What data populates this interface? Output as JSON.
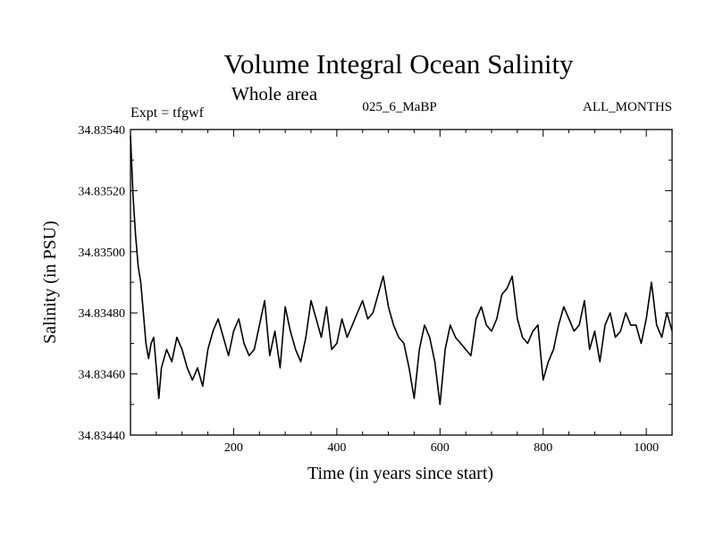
{
  "chart_data": {
    "type": "line",
    "title": "Volume Integral Ocean Salinity",
    "subtitle": "Whole area",
    "experiment_label": "Expt = tfgwf",
    "run_label": "025_6_MaBP",
    "period_label": "ALL_MONTHS",
    "xlabel": "Time (in years since start)",
    "ylabel": "Salinity (in PSU)",
    "xlim": [
      0,
      1050
    ],
    "ylim": [
      34.8344,
      34.8354
    ],
    "x_ticks": [
      200,
      400,
      600,
      800,
      1000
    ],
    "x_tick_labels": [
      "200",
      "400",
      "600",
      "800",
      "1000"
    ],
    "y_ticks": [
      34.8344,
      34.8346,
      34.8348,
      34.835,
      34.8352,
      34.8354
    ],
    "y_tick_labels": [
      "34.83440",
      "34.83460",
      "34.83480",
      "34.83500",
      "34.83520",
      "34.83540"
    ],
    "grid": false,
    "series": [
      {
        "name": "salinity",
        "x": [
          0,
          5,
          10,
          15,
          20,
          25,
          30,
          35,
          40,
          45,
          50,
          55,
          60,
          70,
          80,
          90,
          100,
          110,
          120,
          130,
          140,
          150,
          160,
          170,
          180,
          190,
          200,
          210,
          220,
          230,
          240,
          250,
          260,
          270,
          280,
          290,
          300,
          310,
          320,
          330,
          340,
          350,
          360,
          370,
          380,
          390,
          400,
          410,
          420,
          430,
          440,
          450,
          460,
          470,
          480,
          490,
          500,
          510,
          520,
          530,
          540,
          550,
          560,
          570,
          580,
          590,
          600,
          610,
          620,
          630,
          640,
          650,
          660,
          670,
          680,
          690,
          700,
          710,
          720,
          730,
          740,
          750,
          760,
          770,
          780,
          790,
          800,
          810,
          820,
          830,
          840,
          850,
          860,
          870,
          880,
          890,
          900,
          910,
          920,
          930,
          940,
          950,
          960,
          970,
          980,
          990,
          1000,
          1010,
          1020,
          1030,
          1040,
          1050
        ],
        "values": [
          34.83538,
          34.83518,
          34.83505,
          34.83495,
          34.8349,
          34.8348,
          34.8347,
          34.83465,
          34.8347,
          34.83472,
          34.83462,
          34.83452,
          34.83462,
          34.83468,
          34.83464,
          34.83472,
          34.83468,
          34.83462,
          34.83458,
          34.83462,
          34.83456,
          34.83468,
          34.83474,
          34.83478,
          34.83472,
          34.83466,
          34.83474,
          34.83478,
          34.8347,
          34.83466,
          34.83468,
          34.83476,
          34.83484,
          34.83466,
          34.83474,
          34.83462,
          34.83482,
          34.83474,
          34.83468,
          34.83464,
          34.83472,
          34.83484,
          34.83478,
          34.83472,
          34.83482,
          34.83468,
          34.8347,
          34.83478,
          34.83472,
          34.83476,
          34.8348,
          34.83484,
          34.83478,
          34.8348,
          34.83486,
          34.83492,
          34.83482,
          34.83476,
          34.83472,
          34.8347,
          34.83462,
          34.83452,
          34.83468,
          34.83476,
          34.83472,
          34.83464,
          34.8345,
          34.83468,
          34.83476,
          34.83472,
          34.8347,
          34.83468,
          34.83466,
          34.83478,
          34.83482,
          34.83476,
          34.83474,
          34.83478,
          34.83486,
          34.83488,
          34.83492,
          34.83478,
          34.83472,
          34.8347,
          34.83474,
          34.83476,
          34.83458,
          34.83464,
          34.83468,
          34.83476,
          34.83482,
          34.83478,
          34.83474,
          34.83476,
          34.83484,
          34.83468,
          34.83474,
          34.83464,
          34.83476,
          34.8348,
          34.83472,
          34.83474,
          34.8348,
          34.83476,
          34.83476,
          34.8347,
          34.83478,
          34.8349,
          34.83476,
          34.83472,
          34.8348,
          34.83474
        ]
      }
    ]
  }
}
